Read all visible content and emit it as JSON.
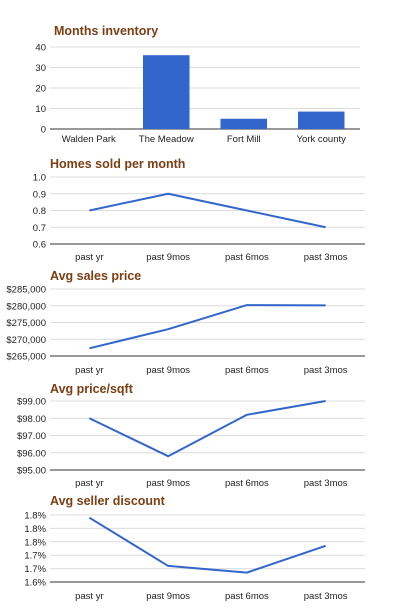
{
  "chart_data": [
    {
      "type": "bar",
      "title": "Months inventory",
      "categories": [
        "Walden Park",
        "The Meadow",
        "Fort Mill",
        "York county"
      ],
      "values": [
        0,
        36,
        5,
        8.5
      ],
      "ylim": [
        0,
        40
      ],
      "yticks": [
        0,
        10,
        20,
        30,
        40
      ],
      "ytick_labels": [
        "0",
        "10",
        "20",
        "30",
        "40"
      ],
      "color": "#3366cc",
      "grid": true,
      "legend": "none"
    },
    {
      "type": "line",
      "title": "Homes sold per month",
      "categories": [
        "past yr",
        "past 9mos",
        "past 6mos",
        "past 3mos"
      ],
      "values": [
        0.8,
        0.9,
        0.8,
        0.7
      ],
      "ylim": [
        0.6,
        1.0
      ],
      "yticks": [
        0.6,
        0.7,
        0.8,
        0.9,
        1.0
      ],
      "ytick_labels": [
        "0.6",
        "0.7",
        "0.8",
        "0.9",
        "1.0"
      ],
      "color": "#3366cc",
      "grid": true,
      "legend": "none"
    },
    {
      "type": "line",
      "title": "Avg sales price",
      "categories": [
        "past yr",
        "past 9mos",
        "past 6mos",
        "past 3mos"
      ],
      "values": [
        267300,
        273000,
        280200,
        280100
      ],
      "ylim": [
        265000,
        285000
      ],
      "yticks": [
        265000,
        270000,
        275000,
        280000,
        285000
      ],
      "ytick_labels": [
        "$265,000",
        "$270,000",
        "$275,000",
        "$280,000",
        "$285,000"
      ],
      "color": "#3366cc",
      "grid": true,
      "legend": "none"
    },
    {
      "type": "line",
      "title": "Avg price/sqft",
      "categories": [
        "past yr",
        "past 9mos",
        "past 6mos",
        "past 3mos"
      ],
      "values": [
        98.0,
        95.8,
        98.2,
        99.0
      ],
      "ylim": [
        95.0,
        99.0
      ],
      "yticks": [
        95.0,
        96.0,
        97.0,
        98.0,
        99.0
      ],
      "ytick_labels": [
        "$95.00",
        "$96.00",
        "$97.00",
        "$98.00",
        "$99.00"
      ],
      "color": "#3366cc",
      "grid": true,
      "legend": "none"
    },
    {
      "type": "line",
      "title": "Avg seller discount",
      "categories": [
        "past yr",
        "past 9mos",
        "past 6mos",
        "past 3mos"
      ],
      "values": [
        1.84,
        1.66,
        1.635,
        1.735
      ],
      "ylim": [
        1.6,
        1.85
      ],
      "yticks": [
        1.6,
        1.65,
        1.7,
        1.75,
        1.8,
        1.85
      ],
      "ytick_labels": [
        "1.6%",
        "1.7%",
        "1.7%",
        "1.8%",
        "1.8%",
        "1.8%"
      ],
      "color": "#3366cc",
      "grid": true,
      "legend": "none"
    }
  ]
}
